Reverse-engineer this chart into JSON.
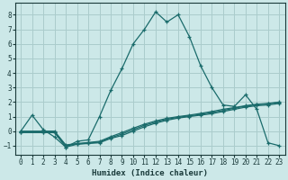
{
  "xlabel": "Humidex (Indice chaleur)",
  "bg_color": "#cce8e8",
  "grid_color": "#aacccc",
  "line_color": "#1a6b6b",
  "xlim": [
    -0.5,
    23.5
  ],
  "ylim": [
    -1.6,
    8.8
  ],
  "xticks": [
    0,
    1,
    2,
    3,
    4,
    5,
    6,
    7,
    8,
    9,
    10,
    11,
    12,
    13,
    14,
    15,
    16,
    17,
    18,
    19,
    20,
    21,
    22,
    23
  ],
  "yticks": [
    -1,
    0,
    1,
    2,
    3,
    4,
    5,
    6,
    7,
    8
  ],
  "line1_x": [
    0,
    1,
    2,
    3,
    4,
    5,
    6,
    7,
    8,
    9,
    10,
    11,
    12,
    13,
    14,
    15,
    16,
    17,
    18,
    19,
    20,
    21,
    22,
    23
  ],
  "line1_y": [
    0.0,
    1.1,
    0.1,
    -0.4,
    -1.1,
    -0.7,
    -0.6,
    1.0,
    2.8,
    4.3,
    6.0,
    7.0,
    8.2,
    7.5,
    8.0,
    6.5,
    4.5,
    3.0,
    1.8,
    1.7,
    2.5,
    1.5,
    -0.8,
    -1.0
  ],
  "line2_x": [
    0,
    2,
    3,
    4,
    5,
    6,
    7,
    8,
    9,
    10,
    11,
    12,
    13,
    14,
    15,
    16,
    17,
    18,
    19,
    20,
    21,
    22,
    23
  ],
  "line2_y": [
    -0.1,
    -0.1,
    -0.1,
    -1.1,
    -0.9,
    -0.85,
    -0.8,
    -0.5,
    -0.3,
    0.0,
    0.3,
    0.55,
    0.75,
    0.9,
    1.0,
    1.1,
    1.2,
    1.35,
    1.5,
    1.65,
    1.75,
    1.8,
    1.9
  ],
  "line3_x": [
    0,
    2,
    3,
    4,
    5,
    6,
    7,
    8,
    9,
    10,
    11,
    12,
    13,
    14,
    15,
    16,
    17,
    18,
    19,
    20,
    21,
    22,
    23
  ],
  "line3_y": [
    -0.05,
    -0.05,
    -0.05,
    -1.0,
    -0.88,
    -0.82,
    -0.75,
    -0.45,
    -0.2,
    0.1,
    0.4,
    0.62,
    0.82,
    0.95,
    1.05,
    1.15,
    1.28,
    1.42,
    1.58,
    1.72,
    1.82,
    1.88,
    1.98
  ],
  "line4_x": [
    0,
    2,
    3,
    4,
    5,
    6,
    7,
    8,
    9,
    10,
    11,
    12,
    13,
    14,
    15,
    16,
    17,
    18,
    19,
    20,
    21,
    22,
    23
  ],
  "line4_y": [
    0.0,
    0.0,
    0.0,
    -0.95,
    -0.85,
    -0.78,
    -0.7,
    -0.38,
    -0.1,
    0.2,
    0.48,
    0.7,
    0.88,
    1.0,
    1.1,
    1.22,
    1.35,
    1.5,
    1.62,
    1.75,
    1.85,
    1.9,
    2.0
  ]
}
